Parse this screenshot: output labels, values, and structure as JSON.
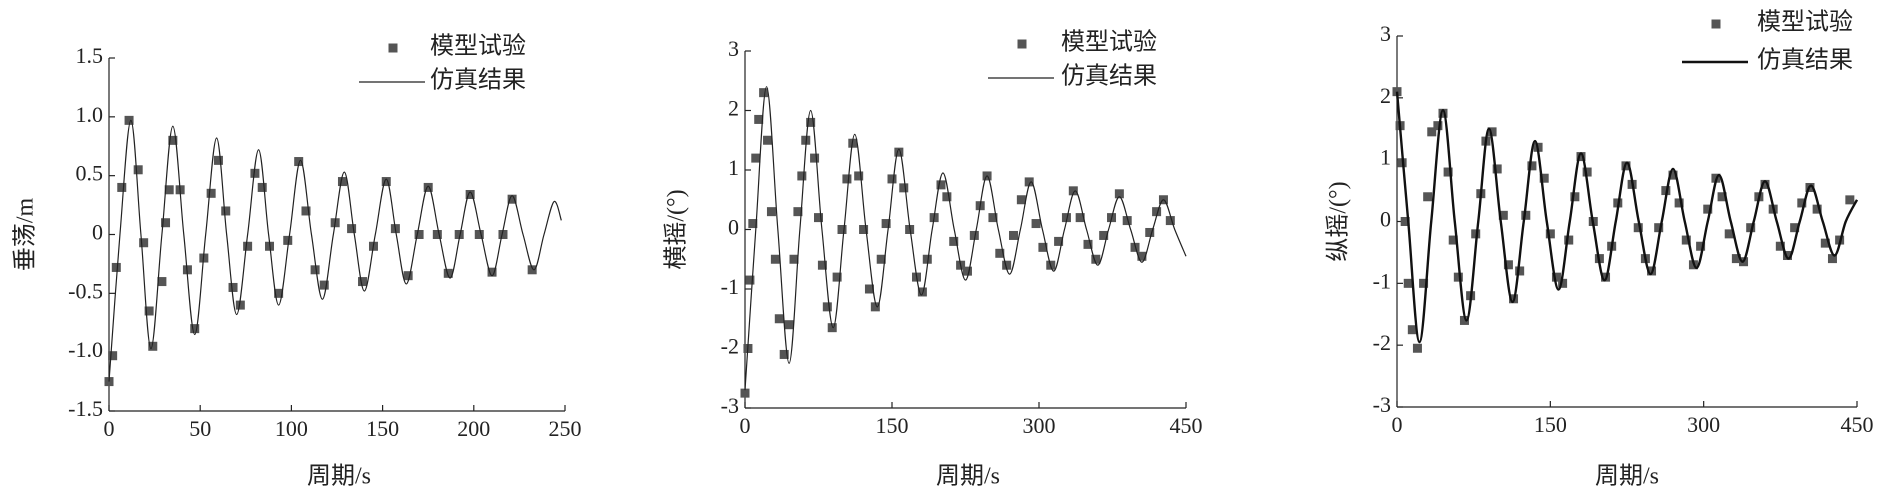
{
  "chart_data": [
    {
      "type": "line",
      "y_label": "垂荡/m",
      "x_label": "周期/s",
      "xlim": [
        0,
        250
      ],
      "ylim": [
        -1.5,
        1.5
      ],
      "xticks": [
        0,
        50,
        100,
        150,
        200,
        250
      ],
      "yticks": [
        -1.5,
        {
          "value": -1,
          "label": "-1.0"
        },
        -0.5,
        0,
        0.5,
        {
          "value": 1,
          "label": "1.0"
        },
        1.5
      ],
      "legend": "upper right",
      "series": [
        {
          "name": "模型试验",
          "type": "scatter",
          "color": "#555555",
          "x": [
            0,
            2,
            4,
            7,
            11,
            16,
            19,
            22,
            24,
            29,
            31,
            33,
            35,
            39,
            43,
            47,
            52,
            56,
            60,
            64,
            68,
            72,
            76,
            80,
            84,
            88,
            93,
            98,
            104,
            108,
            113,
            118,
            124,
            128,
            133,
            139,
            145,
            152,
            157,
            164,
            170,
            175,
            180,
            186,
            192,
            198,
            203,
            210,
            216,
            221,
            232
          ],
          "values": [
            -1.25,
            -1.03,
            -0.28,
            0.4,
            0.97,
            0.55,
            -0.07,
            -0.65,
            -0.95,
            -0.4,
            0.1,
            0.38,
            0.8,
            0.38,
            -0.3,
            -0.8,
            -0.2,
            0.35,
            0.63,
            0.2,
            -0.45,
            -0.6,
            -0.1,
            0.52,
            0.4,
            -0.1,
            -0.5,
            -0.05,
            0.62,
            0.2,
            -0.3,
            -0.43,
            0.1,
            0.45,
            0.05,
            -0.4,
            -0.1,
            0.45,
            0.05,
            -0.35,
            0,
            0.4,
            0,
            -0.33,
            0,
            0.34,
            0,
            -0.32,
            0,
            0.3,
            -0.3
          ]
        },
        {
          "name": "仿真结果",
          "type": "line",
          "color": "#222222",
          "x": [
            0,
            6,
            12,
            17.5,
            23,
            29,
            35,
            41,
            47,
            53,
            59,
            64.5,
            70,
            76,
            82,
            87.5,
            93,
            99,
            105,
            111,
            117,
            123,
            129,
            134.5,
            140,
            146,
            152,
            157.5,
            163,
            169,
            175,
            181,
            187,
            192.5,
            198,
            204,
            210,
            215.5,
            221,
            227,
            233,
            238.5,
            244,
            248
          ],
          "values": [
            -1.25,
            0,
            0.97,
            0,
            -0.97,
            0,
            0.92,
            0,
            -0.85,
            0,
            0.82,
            0,
            -0.68,
            0,
            0.72,
            0,
            -0.6,
            0,
            0.63,
            0,
            -0.55,
            0,
            0.53,
            0,
            -0.48,
            0,
            0.47,
            0,
            -0.42,
            0,
            0.41,
            0,
            -0.37,
            0,
            0.36,
            0,
            -0.35,
            0,
            0.33,
            0,
            -0.3,
            0,
            0.28,
            0.12
          ]
        }
      ]
    },
    {
      "type": "line",
      "y_label": "横摇/(°)",
      "x_label": "周期/s",
      "xlim": [
        0,
        450
      ],
      "ylim": [
        -3,
        3
      ],
      "xticks": [
        0,
        150,
        300,
        450
      ],
      "yticks": [
        -3,
        -2,
        -1,
        0,
        1,
        2,
        3
      ],
      "legend": "upper right",
      "series": [
        {
          "name": "模型试验",
          "type": "scatter",
          "color": "#555555",
          "x": [
            0,
            3,
            5,
            8,
            11,
            14,
            19,
            23,
            27,
            31,
            35,
            40,
            45,
            50,
            54,
            58,
            62,
            67,
            71,
            75,
            79,
            84,
            89,
            94,
            99,
            104,
            110,
            116,
            121,
            127,
            133,
            139,
            144,
            150,
            157,
            162,
            168,
            175,
            181,
            186,
            193,
            200,
            206,
            213,
            220,
            227,
            234,
            240,
            247,
            253,
            260,
            267,
            274,
            282,
            290,
            297,
            304,
            312,
            320,
            328,
            335,
            342,
            350,
            358,
            366,
            374,
            382,
            390,
            398,
            405,
            413,
            420,
            427,
            434
          ],
          "values": [
            -2.75,
            -2,
            -0.85,
            0.1,
            1.2,
            1.85,
            2.3,
            1.5,
            0.3,
            -0.5,
            -1.5,
            -2.1,
            -1.6,
            -0.5,
            0.3,
            0.9,
            1.5,
            1.8,
            1.2,
            0.2,
            -0.6,
            -1.3,
            -1.65,
            -0.8,
            0,
            0.85,
            1.45,
            0.9,
            0,
            -1,
            -1.3,
            -0.5,
            0.1,
            0.85,
            1.3,
            0.7,
            0,
            -0.8,
            -1.05,
            -0.5,
            0.2,
            0.75,
            0.55,
            -0.2,
            -0.6,
            -0.7,
            -0.1,
            0.4,
            0.9,
            0.2,
            -0.4,
            -0.6,
            -0.1,
            0.5,
            0.8,
            0.1,
            -0.3,
            -0.6,
            -0.2,
            0.2,
            0.65,
            0.2,
            -0.25,
            -0.5,
            -0.1,
            0.2,
            0.6,
            0.15,
            -0.3,
            -0.45,
            -0.05,
            0.3,
            0.5,
            0.15
          ]
        },
        {
          "name": "仿真结果",
          "type": "line",
          "color": "#222222",
          "x": [
            0,
            11,
            22,
            33.5,
            45,
            56,
            67,
            78.5,
            90,
            101,
            112,
            123.5,
            135,
            146,
            157,
            168.5,
            180,
            191,
            202,
            213.5,
            225,
            236,
            247,
            258.5,
            270,
            281,
            292,
            303.5,
            315,
            326,
            337,
            348.5,
            360,
            371,
            382,
            393.5,
            405,
            416,
            427,
            438.5,
            450
          ],
          "values": [
            -2.7,
            0,
            2.4,
            0,
            -2.25,
            0,
            2,
            0,
            -1.65,
            0,
            1.6,
            0,
            -1.3,
            0,
            1.35,
            0,
            -1.1,
            0,
            0.95,
            0,
            -0.85,
            0,
            0.9,
            0,
            -0.75,
            0,
            0.8,
            0,
            -0.7,
            0,
            0.65,
            0,
            -0.6,
            0,
            0.55,
            0,
            -0.55,
            0,
            0.5,
            0,
            -0.45
          ]
        }
      ]
    },
    {
      "type": "line",
      "y_label": "纵摇/(°)",
      "x_label": "周期/s",
      "xlim": [
        0,
        450
      ],
      "ylim": [
        -3,
        3
      ],
      "xticks": [
        0,
        150,
        300,
        450
      ],
      "yticks": [
        -3,
        -2,
        -1,
        0,
        1,
        2,
        3
      ],
      "legend": "upper right",
      "series": [
        {
          "name": "模型试验",
          "type": "scatter",
          "color": "#555555",
          "x": [
            0,
            3,
            5,
            8,
            11,
            15,
            20,
            26,
            30,
            34,
            40,
            45,
            50,
            55,
            60,
            66,
            72,
            77,
            82,
            87,
            93,
            98,
            104,
            109,
            114,
            120,
            126,
            132,
            138,
            144,
            150,
            156,
            162,
            168,
            174,
            180,
            186,
            192,
            198,
            204,
            210,
            216,
            224,
            230,
            236,
            243,
            249,
            256,
            263,
            270,
            276,
            283,
            290,
            297,
            304,
            312,
            318,
            325,
            332,
            339,
            346,
            354,
            360,
            368,
            375,
            382,
            389,
            396,
            404,
            411,
            419,
            426,
            433,
            443
          ],
          "values": [
            2.1,
            1.55,
            0.95,
            0,
            -1,
            -1.75,
            -2.05,
            -1,
            0.4,
            1.45,
            1.55,
            1.75,
            0.8,
            -0.3,
            -0.9,
            -1.6,
            -1.2,
            -0.2,
            0.45,
            1.3,
            1.45,
            0.85,
            0.1,
            -0.7,
            -1.25,
            -0.8,
            0.1,
            0.9,
            1.2,
            0.7,
            -0.2,
            -0.9,
            -1,
            -0.3,
            0.4,
            1.05,
            0.8,
            0,
            -0.6,
            -0.9,
            -0.4,
            0.3,
            0.9,
            0.6,
            -0.1,
            -0.6,
            -0.8,
            -0.1,
            0.5,
            0.75,
            0.3,
            -0.3,
            -0.7,
            -0.4,
            0.2,
            0.7,
            0.4,
            -0.2,
            -0.6,
            -0.65,
            -0.1,
            0.4,
            0.6,
            0.2,
            -0.4,
            -0.55,
            -0.1,
            0.3,
            0.55,
            0.2,
            -0.35,
            -0.6,
            -0.3,
            0.35
          ]
        },
        {
          "name": "仿真结果",
          "type": "line",
          "color": "#111111",
          "x": [
            0,
            11,
            22,
            33.5,
            45,
            56.5,
            68,
            79.5,
            90,
            101.5,
            113,
            124,
            135,
            146.5,
            158,
            169,
            180,
            191.5,
            203,
            214,
            225,
            236.5,
            248,
            259,
            270,
            281.5,
            293,
            304,
            315,
            326.5,
            338,
            349,
            360,
            371.5,
            383,
            394,
            405,
            416.5,
            428,
            439,
            450
          ],
          "values": [
            2.1,
            0,
            -1.95,
            0,
            1.8,
            0,
            -1.6,
            0,
            1.5,
            0,
            -1.3,
            0,
            1.3,
            0,
            -1.1,
            0,
            1.1,
            0,
            -0.95,
            0,
            0.95,
            0,
            -0.85,
            0,
            0.85,
            0,
            -0.75,
            0,
            0.75,
            0,
            -0.65,
            0,
            0.65,
            0,
            -0.6,
            0,
            0.58,
            0,
            -0.55,
            0,
            0.35
          ]
        }
      ]
    }
  ]
}
